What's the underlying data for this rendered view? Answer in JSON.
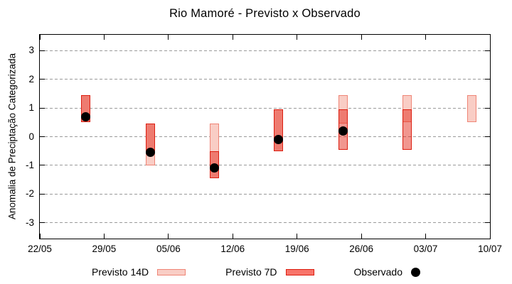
{
  "legend": {
    "items": [
      {
        "label": "Previsto 14D"
      },
      {
        "label": "Previsto 7D"
      },
      {
        "label": "Observado"
      }
    ]
  },
  "colors": {
    "previsto_14d_fill": "#f9cdc5",
    "previsto_14d_border": "#ef8576",
    "previsto_7d_fill": "#f8746a",
    "previsto_7d_border": "#dc1e10",
    "observado": "#000000",
    "grid": "#9a9a9a"
  },
  "chart_data": {
    "type": "bar",
    "title": "Rio Mamoré - Previsto x Observado",
    "ylabel": "Anomalia de Preciptação Categorizada",
    "xlabel": "",
    "ylim": [
      -3.55,
      3.55
    ],
    "yticks": [
      3,
      2,
      1,
      0,
      -1,
      -2,
      -3
    ],
    "grid": "horizontal-dashed",
    "legend_position": "bottom",
    "x_span_days": 49,
    "xticks": [
      {
        "label": "22/05",
        "day": 0
      },
      {
        "label": "29/05",
        "day": 7
      },
      {
        "label": "05/06",
        "day": 14
      },
      {
        "label": "12/06",
        "day": 21
      },
      {
        "label": "19/06",
        "day": 28
      },
      {
        "label": "26/06",
        "day": 35
      },
      {
        "label": "03/07",
        "day": 42
      },
      {
        "label": "10/07",
        "day": 49
      }
    ],
    "series": [
      {
        "name": "Previsto 14D",
        "type": "range-bar"
      },
      {
        "name": "Previsto 7D",
        "type": "range-bar"
      },
      {
        "name": "Observado",
        "type": "point"
      }
    ],
    "clusters": [
      {
        "date": "27/05",
        "day": 5,
        "previsto_14d": [
          0.5,
          1.45
        ],
        "previsto_7d": [
          0.5,
          1.45
        ],
        "observado": 0.7
      },
      {
        "date": "03/06",
        "day": 12,
        "previsto_14d": [
          -1.0,
          0.45
        ],
        "previsto_7d": [
          -0.5,
          0.45
        ],
        "observado": -0.55
      },
      {
        "date": "10/06",
        "day": 19,
        "previsto_14d": [
          -1.45,
          0.45
        ],
        "previsto_7d": [
          -1.45,
          -0.5
        ],
        "observado": -1.1
      },
      {
        "date": "17/06",
        "day": 26,
        "previsto_14d": [
          -0.5,
          0.95
        ],
        "previsto_7d": [
          -0.5,
          0.95
        ],
        "observado": -0.1
      },
      {
        "date": "24/06",
        "day": 33,
        "previsto_14d": [
          0.45,
          1.45
        ],
        "previsto_7d": [
          -0.45,
          0.95
        ],
        "observado": 0.2
      },
      {
        "date": "01/07",
        "day": 40,
        "previsto_14d": [
          0.5,
          1.45
        ],
        "previsto_7d": [
          -0.45,
          0.95
        ],
        "observado": null
      },
      {
        "date": "08/07",
        "day": 47,
        "previsto_14d": [
          0.5,
          1.45
        ],
        "previsto_7d": null,
        "observado": null
      }
    ]
  }
}
